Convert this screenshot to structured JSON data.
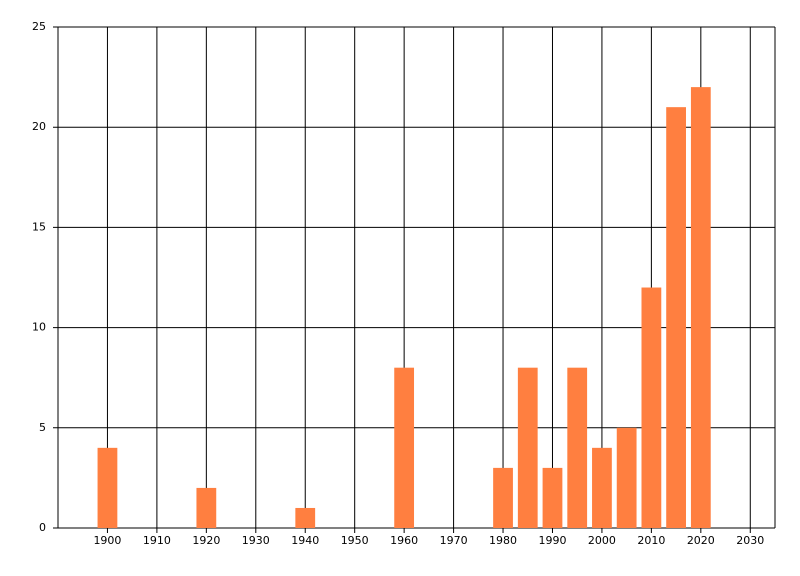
{
  "chart_data": {
    "type": "bar",
    "x": [
      1900,
      1920,
      1940,
      1960,
      1980,
      1985,
      1990,
      1995,
      2000,
      2005,
      2010,
      2015,
      2020
    ],
    "values": [
      4,
      2,
      1,
      8,
      3,
      8,
      3,
      8,
      4,
      5,
      12,
      21,
      22
    ],
    "color": "#ff7f40",
    "xlim": [
      1890,
      2035
    ],
    "xticks": [
      1900,
      1910,
      1920,
      1930,
      1940,
      1950,
      1960,
      1970,
      1980,
      1990,
      2000,
      2010,
      2020,
      2030
    ],
    "ylim": [
      0,
      25
    ],
    "yticks": [
      0,
      5,
      10,
      15,
      20,
      25
    ],
    "grid": true
  }
}
